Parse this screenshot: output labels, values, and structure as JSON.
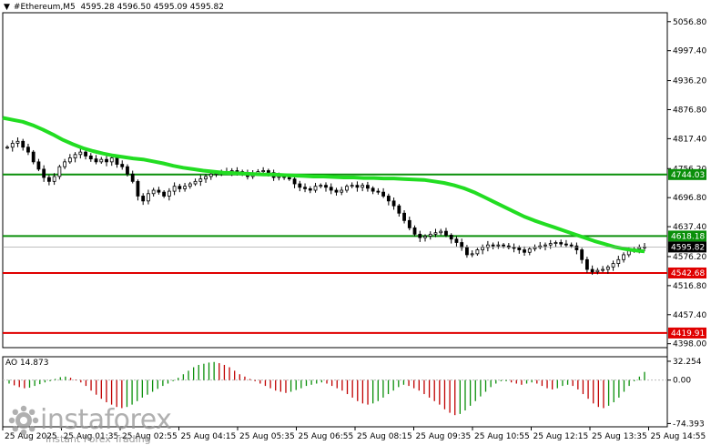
{
  "header": {
    "symbol": "#Ethereum,M5",
    "ohlc": "4595.28 4596.50 4595.09 4595.82"
  },
  "indicator": {
    "label": "AO 14.873"
  },
  "watermark": {
    "brand": "instaforex",
    "tagline": "Instant Forex Trading"
  },
  "colors": {
    "candles": "#000000",
    "ma": "#22dd22",
    "support_resistance_green": "#0a8f0a",
    "support_resistance_red": "#e00000",
    "ao_up": "#0a8f0a",
    "ao_down": "#c00000",
    "current_price_tag": "#000000"
  },
  "chart_data": {
    "type": "candlestick",
    "symbol": "#Ethereum",
    "timeframe": "M5",
    "price_axis": {
      "ticks": [
        "5056.80",
        "4997.40",
        "4936.20",
        "4876.80",
        "4817.40",
        "4756.20",
        "4696.80",
        "4637.40",
        "4576.20",
        "4516.80",
        "4457.40",
        "4398.00"
      ],
      "ylim": [
        4390,
        5075
      ]
    },
    "time_axis": {
      "ticks": [
        "25 Aug 2025",
        "25 Aug 01:35",
        "25 Aug 02:55",
        "25 Aug 04:15",
        "25 Aug 05:35",
        "25 Aug 06:55",
        "25 Aug 08:15",
        "25 Aug 09:35",
        "25 Aug 10:55",
        "25 Aug 12:15",
        "25 Aug 13:35",
        "25 Aug 14:55"
      ]
    },
    "levels": [
      {
        "value": 4744.03,
        "label": "4744.03",
        "color": "green"
      },
      {
        "value": 4618.18,
        "label": "4618.18",
        "color": "green"
      },
      {
        "value": 4542.68,
        "label": "4542.68",
        "color": "red"
      },
      {
        "value": 4419.91,
        "label": "4419.91",
        "color": "red"
      }
    ],
    "current_price": {
      "value": 4595.82,
      "label": "4595.82"
    },
    "close_series": [
      4800,
      4808,
      4812,
      4800,
      4790,
      4770,
      4755,
      4738,
      4730,
      4740,
      4760,
      4770,
      4778,
      4785,
      4790,
      4782,
      4776,
      4770,
      4775,
      4770,
      4778,
      4765,
      4760,
      4745,
      4730,
      4700,
      4690,
      4705,
      4712,
      4708,
      4700,
      4710,
      4720,
      4715,
      4720,
      4725,
      4730,
      4735,
      4740,
      4745,
      4746,
      4748,
      4750,
      4752,
      4750,
      4748,
      4740,
      4745,
      4750,
      4752,
      4748,
      4738,
      4740,
      4738,
      4735,
      4725,
      4718,
      4715,
      4712,
      4720,
      4722,
      4718,
      4712,
      4708,
      4712,
      4720,
      4722,
      4718,
      4722,
      4716,
      4710,
      4708,
      4700,
      4690,
      4680,
      4665,
      4650,
      4635,
      4622,
      4615,
      4618,
      4622,
      4625,
      4628,
      4620,
      4612,
      4605,
      4595,
      4580,
      4582,
      4590,
      4595,
      4600,
      4598,
      4600,
      4598,
      4595,
      4594,
      4590,
      4585,
      4592,
      4595,
      4598,
      4600,
      4603,
      4605,
      4602,
      4600,
      4598,
      4590,
      4570,
      4550,
      4545,
      4548,
      4550,
      4555,
      4562,
      4570,
      4580,
      4588,
      4592,
      4595,
      4596
    ],
    "ma_series": {
      "name": "",
      "values": [
        4860,
        4856,
        4852,
        4845,
        4836,
        4826,
        4815,
        4806,
        4798,
        4792,
        4787,
        4783,
        4780,
        4777,
        4775,
        4771,
        4767,
        4762,
        4758,
        4755,
        4752,
        4750,
        4748,
        4747,
        4746,
        4745,
        4744,
        4744,
        4743,
        4742,
        4741,
        4740,
        4740,
        4739,
        4738,
        4738,
        4737,
        4737,
        4736,
        4736,
        4735,
        4734,
        4733,
        4730,
        4727,
        4722,
        4716,
        4708,
        4698,
        4688,
        4678,
        4668,
        4658,
        4650,
        4643,
        4636,
        4629,
        4622,
        4615,
        4608,
        4602,
        4596,
        4592,
        4589,
        4587
      ]
    },
    "ao": {
      "label": "AO 14.873",
      "ticks": [
        "32.254",
        "0.00",
        "-74.393"
      ],
      "ylim": [
        -80,
        40
      ],
      "values": [
        -6,
        -9,
        -12,
        -14,
        -13,
        -10,
        -7,
        -4,
        -2,
        2,
        5,
        6,
        4,
        1,
        -4,
        -10,
        -18,
        -25,
        -32,
        -38,
        -42,
        -46,
        -48,
        -46,
        -42,
        -36,
        -30,
        -25,
        -20,
        -15,
        -10,
        -6,
        -2,
        4,
        10,
        16,
        22,
        26,
        28,
        30,
        31,
        29,
        26,
        22,
        16,
        10,
        6,
        2,
        -2,
        -6,
        -10,
        -14,
        -18,
        -20,
        -22,
        -20,
        -17,
        -14,
        -10,
        -8,
        -6,
        -4,
        -6,
        -10,
        -14,
        -18,
        -24,
        -30,
        -36,
        -40,
        -42,
        -40,
        -36,
        -30,
        -24,
        -18,
        -12,
        -8,
        -10,
        -14,
        -18,
        -24,
        -30,
        -36,
        -42,
        -50,
        -56,
        -60,
        -58,
        -52,
        -44,
        -36,
        -28,
        -20,
        -12,
        -6,
        -2,
        -2,
        -4,
        -6,
        -8,
        -6,
        -4,
        -6,
        -10,
        -14,
        -16,
        -14,
        -10,
        -8,
        -10,
        -16,
        -24,
        -32,
        -40,
        -46,
        -48,
        -44,
        -38,
        -30,
        -20,
        -10,
        -2,
        6,
        14
      ]
    }
  }
}
